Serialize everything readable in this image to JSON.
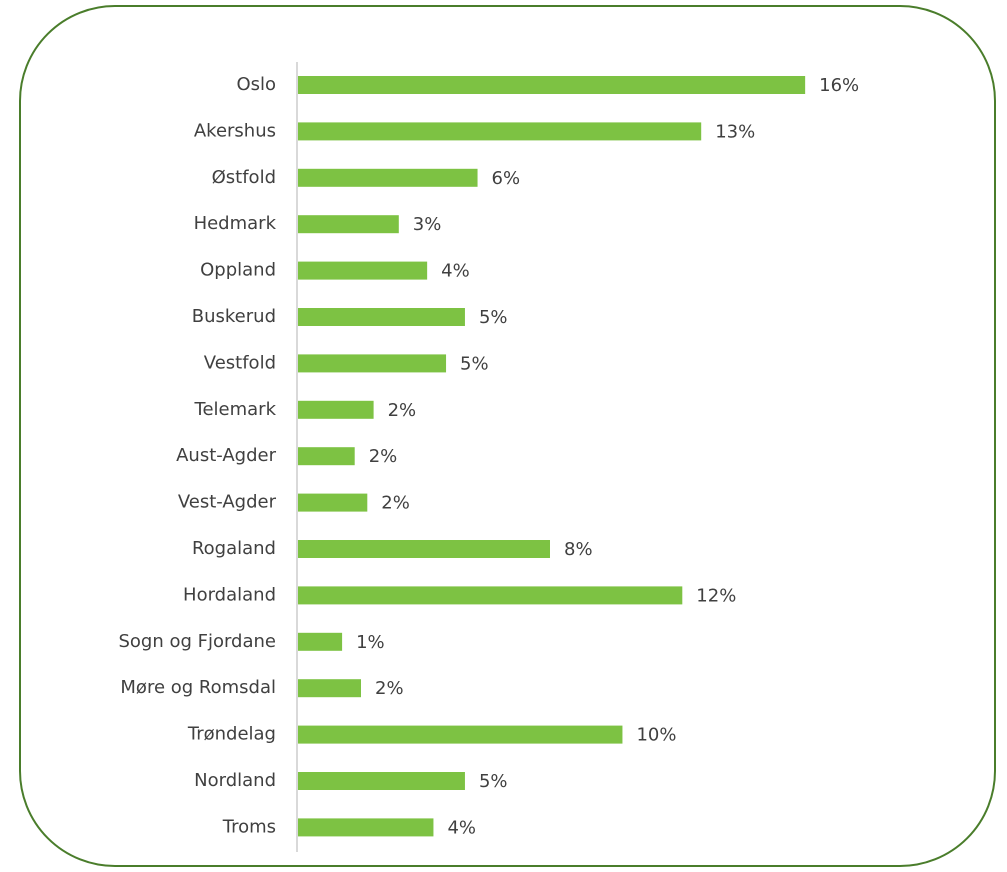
{
  "chart_data": {
    "type": "barh",
    "categories": [
      "Oslo",
      "Akershus",
      "Østfold",
      "Hedmark",
      "Oppland",
      "Buskerud",
      "Vestfold",
      "Telemark",
      "Aust-Agder",
      "Vest-Agder",
      "Rogaland",
      "Hordaland",
      "Sogn og Fjordane",
      "Møre og Romsdal",
      "Trøndelag",
      "Nordland",
      "Troms"
    ],
    "values": [
      16.1,
      12.8,
      5.7,
      3.2,
      4.1,
      5.3,
      4.7,
      2.4,
      1.8,
      2.2,
      8.0,
      12.2,
      1.4,
      2.0,
      10.3,
      5.3,
      4.3
    ],
    "value_labels": [
      "16%",
      "13%",
      "6%",
      "3%",
      "4%",
      "5%",
      "5%",
      "2%",
      "2%",
      "2%",
      "8%",
      "12%",
      "1%",
      "2%",
      "10%",
      "5%",
      "4%"
    ],
    "color": "#7dc243",
    "xlim": [
      0,
      20
    ]
  }
}
